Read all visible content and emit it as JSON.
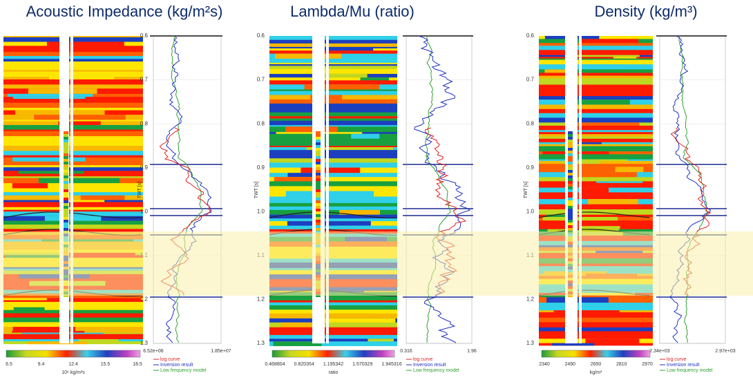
{
  "panels": [
    {
      "title": "Acoustic Impedance (kg/m²s)",
      "y_axis_label": "TWT [s]",
      "yticks": [
        "0.6",
        "0.7",
        "0.8",
        "0.9",
        "1.0",
        "1.1",
        "1.2",
        "1.3"
      ],
      "colorbar_ticks": [
        "6.5",
        "9.4",
        "12.4",
        "15.5",
        "18.5"
      ],
      "colorbar_unit": "10⁶ kg/m²s",
      "log_range": [
        "6.52e+06",
        "1.85e+07"
      ],
      "legend": [
        "log curve",
        "Inversion result",
        "Low frequency model"
      ]
    },
    {
      "title": "Lambda/Mu (ratio)",
      "y_axis_label": "TWT [s]",
      "yticks": [
        "0.6",
        "0.7",
        "0.8",
        "0.9",
        "1.0",
        "1.1",
        "1.2",
        "1.3"
      ],
      "colorbar_ticks": [
        "0.468804",
        "0.820354",
        "1.195342",
        "1.570329",
        "1.945316"
      ],
      "colorbar_unit": "ratio",
      "log_range": [
        "0.316",
        "1.96"
      ],
      "legend": [
        "log curve",
        "Inversion result",
        "Low frequency model"
      ]
    },
    {
      "title": "Density (kg/m³)",
      "y_axis_label": "TWT [s]",
      "yticks": [
        "0.6",
        "0.7",
        "0.8",
        "0.9",
        "1.0",
        "1.1",
        "1.2",
        "1.3"
      ],
      "colorbar_ticks": [
        "2340",
        "2490",
        "2650",
        "2810",
        "2970"
      ],
      "colorbar_unit": "kg/m³",
      "log_range": [
        "2.34e+03",
        "2.97e+03"
      ],
      "legend": [
        "log curve",
        "Inversion result",
        "Low frequency model"
      ]
    }
  ]
}
